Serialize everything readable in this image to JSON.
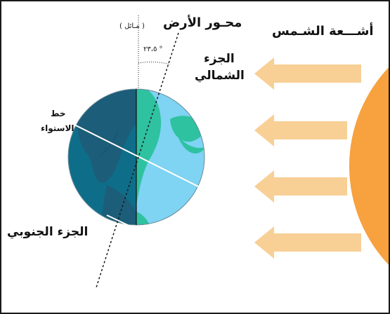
{
  "labels": {
    "earth_axis": "محـور الأرض",
    "axis_note": "( مـائل )",
    "tilt_angle": "٢٣،٥ °",
    "northern_part_line1": "الجزء",
    "northern_part_line2": "الشمالي",
    "equator_line1": "خط",
    "equator_line2": "الاستواء",
    "southern_part": "الجزء الجنوبي",
    "sun_rays": "أشـــعة الشـمس"
  },
  "colors": {
    "ocean_day": "#7fd3f3",
    "ocean_night": "#0e6e8a",
    "land_day": "#2ec2a0",
    "land_night": "#1c5d79",
    "sun": "#f7a13f",
    "ray_arrow": "#f8cf95",
    "frame": "#1a1a1a"
  }
}
